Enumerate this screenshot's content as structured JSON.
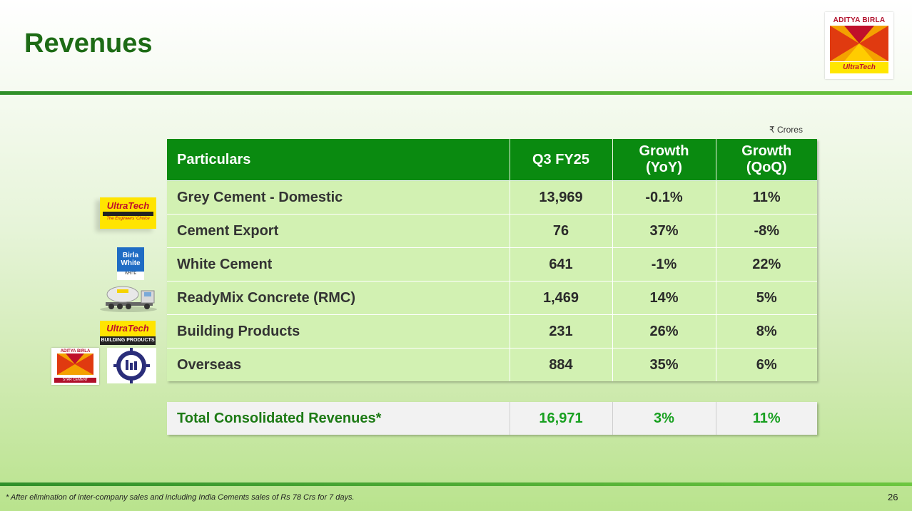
{
  "slide": {
    "title": "Revenues",
    "units": "₹ Crores",
    "footnote": "* After elimination of inter-company sales and including India Cements sales of Rs 78 Crs for 7 days.",
    "page_number": "26"
  },
  "logo": {
    "group_name": "ADITYA BIRLA",
    "brand_name": "UltraTech"
  },
  "table": {
    "headers": {
      "particulars": "Particulars",
      "q3": "Q3 FY25",
      "yoy_line1": "Growth",
      "yoy_line2": "(YoY)",
      "qoq_line1": "Growth",
      "qoq_line2": "(QoQ)"
    },
    "rows": [
      {
        "label": "Grey Cement - Domestic",
        "q3": "13,969",
        "yoy": "-0.1%",
        "qoq": "11%"
      },
      {
        "label": "Cement Export",
        "q3": "76",
        "yoy": "37%",
        "qoq": "-8%"
      },
      {
        "label": "White Cement",
        "q3": "641",
        "yoy": "-1%",
        "qoq": "22%"
      },
      {
        "label": "ReadyMix Concrete (RMC)",
        "q3": "1,469",
        "yoy": "14%",
        "qoq": "5%"
      },
      {
        "label": "Building Products",
        "q3": "231",
        "yoy": "26%",
        "qoq": "8%"
      },
      {
        "label": "Overseas",
        "q3": "884",
        "yoy": "35%",
        "qoq": "6%"
      }
    ],
    "total": {
      "label": "Total Consolidated Revenues*",
      "q3": "16,971",
      "yoy": "3%",
      "qoq": "11%"
    }
  },
  "side_logos": {
    "ultratech_cement": {
      "name": "UltraTech",
      "band": "C E M E N T",
      "tagline": "The Engineers' Choice"
    },
    "birla_white": {
      "name_line1": "Birla",
      "name_line2": "White",
      "band": "WHITE"
    },
    "ultratech_bp": {
      "name": "UltraTech",
      "sub": "BUILDING PRODUCTS"
    },
    "star_cement": {
      "group": "ADITYA BIRLA",
      "name": "STAR CEMENT"
    }
  },
  "colors": {
    "title_green": "#1d6b15",
    "header_green": "#0a8a10",
    "row_bg": "#d2f1b2",
    "total_text": "#18a020"
  }
}
